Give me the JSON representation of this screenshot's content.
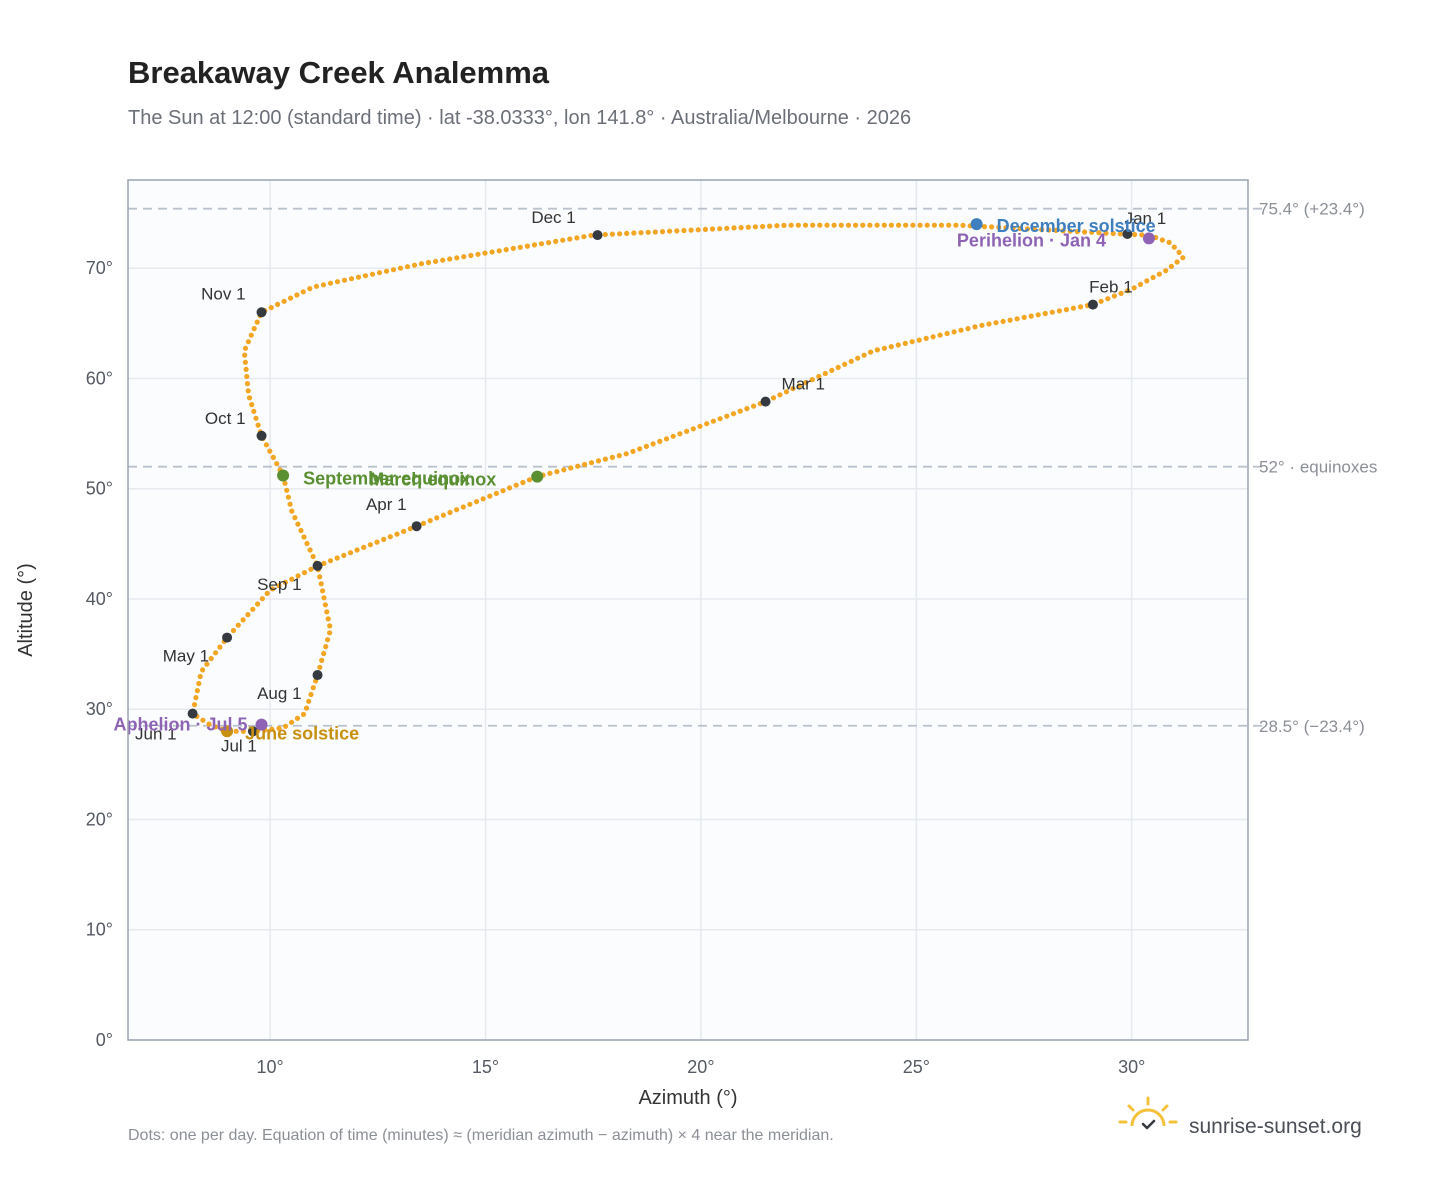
{
  "title": "Breakaway Creek Analemma",
  "subtitle": "The Sun at 12:00 (standard time) · lat -38.0333°, lon 141.8° · Australia/Melbourne · 2026",
  "footnote": "Dots: one per day. Equation of time (minutes) ≈ (meridian azimuth − azimuth) × 4 near the meridian.",
  "brand": {
    "name": "sunrise-sunset.org",
    "icon": "sun-logo-icon"
  },
  "colors": {
    "path": "#f2a623",
    "month_dot": "#343a40",
    "equinox": "#5a8f32",
    "solstice_june": "#c79010",
    "solstice_december": "#3f7fbf",
    "apsis": "#8e63b5",
    "grid": "#e6e9ee",
    "reference_line": "#b9c1cc",
    "plot_bg": "#fafcfe",
    "frame": "#9aa3b0"
  },
  "chart_data": {
    "type": "scatter",
    "xlabel": "Azimuth (°)",
    "ylabel": "Altitude (°)",
    "xlim": [
      6.7,
      32.7
    ],
    "ylim": [
      0,
      78
    ],
    "xticks": [
      10,
      15,
      20,
      25,
      30
    ],
    "yticks": [
      0,
      10,
      20,
      30,
      40,
      50,
      60,
      70
    ],
    "tick_suffix": "°",
    "grid": true,
    "reference_lines": [
      {
        "y": 75.4,
        "label": "75.4° (+23.4°)"
      },
      {
        "y": 52.0,
        "label": "52° · equinoxes"
      },
      {
        "y": 28.5,
        "label": "28.5° (−23.4°)"
      }
    ],
    "path_points": [
      [
        30.4,
        73.0
      ],
      [
        30.9,
        72.3
      ],
      [
        31.2,
        71.0
      ],
      [
        30.8,
        69.8
      ],
      [
        30.0,
        68.1
      ],
      [
        29.1,
        66.7
      ],
      [
        26.5,
        64.8
      ],
      [
        24.0,
        62.5
      ],
      [
        21.5,
        57.9
      ],
      [
        18.3,
        53.2
      ],
      [
        16.2,
        51.1
      ],
      [
        13.4,
        46.6
      ],
      [
        11.1,
        43.0
      ],
      [
        10.0,
        40.8
      ],
      [
        9.0,
        36.5
      ],
      [
        8.4,
        33.4
      ],
      [
        8.2,
        29.6
      ],
      [
        8.6,
        28.6
      ],
      [
        9.0,
        28.0
      ],
      [
        9.6,
        28.0
      ],
      [
        10.3,
        28.3
      ],
      [
        10.8,
        29.6
      ],
      [
        11.1,
        33.1
      ],
      [
        11.4,
        37.2
      ],
      [
        11.1,
        43.0
      ],
      [
        10.5,
        48.0
      ],
      [
        10.3,
        51.2
      ],
      [
        9.8,
        54.8
      ],
      [
        9.5,
        58.5
      ],
      [
        9.4,
        62.5
      ],
      [
        9.8,
        66.0
      ],
      [
        11.0,
        68.3
      ],
      [
        13.5,
        70.4
      ],
      [
        17.5,
        73.0
      ],
      [
        22.0,
        73.9
      ],
      [
        26.0,
        73.9
      ],
      [
        29.8,
        73.1
      ],
      [
        30.4,
        73.0
      ]
    ],
    "month_points": [
      {
        "label": "Jan 1",
        "x": 29.9,
        "y": 73.1
      },
      {
        "label": "Feb 1",
        "x": 29.1,
        "y": 66.7
      },
      {
        "label": "Mar 1",
        "x": 21.5,
        "y": 57.9
      },
      {
        "label": "Apr 1",
        "x": 13.4,
        "y": 46.6
      },
      {
        "label": "May 1",
        "x": 9.0,
        "y": 36.5
      },
      {
        "label": "Jun 1",
        "x": 8.2,
        "y": 29.6
      },
      {
        "label": "Jul 1",
        "x": 9.6,
        "y": 28.0
      },
      {
        "label": "Aug 1",
        "x": 11.1,
        "y": 33.1
      },
      {
        "label": "Sep 1",
        "x": 11.1,
        "y": 43.0
      },
      {
        "label": "Oct 1",
        "x": 9.8,
        "y": 54.8
      },
      {
        "label": "Nov 1",
        "x": 9.8,
        "y": 66.0
      },
      {
        "label": "Dec 1",
        "x": 17.6,
        "y": 73.0
      }
    ],
    "events": [
      {
        "label": "March equinox",
        "x": 16.2,
        "y": 51.1,
        "kind": "equinox"
      },
      {
        "label": "September equinox",
        "x": 10.3,
        "y": 51.2,
        "kind": "equinox"
      },
      {
        "label": "June solstice",
        "x": 9.0,
        "y": 28.0,
        "kind": "solstice_june"
      },
      {
        "label": "December solstice",
        "x": 26.4,
        "y": 74.0,
        "kind": "solstice_december"
      },
      {
        "label": "Perihelion · Jan 4",
        "x": 30.4,
        "y": 72.7,
        "kind": "apsis"
      },
      {
        "label": "Aphelion · Jul 5",
        "x": 9.8,
        "y": 28.6,
        "kind": "apsis"
      }
    ]
  }
}
